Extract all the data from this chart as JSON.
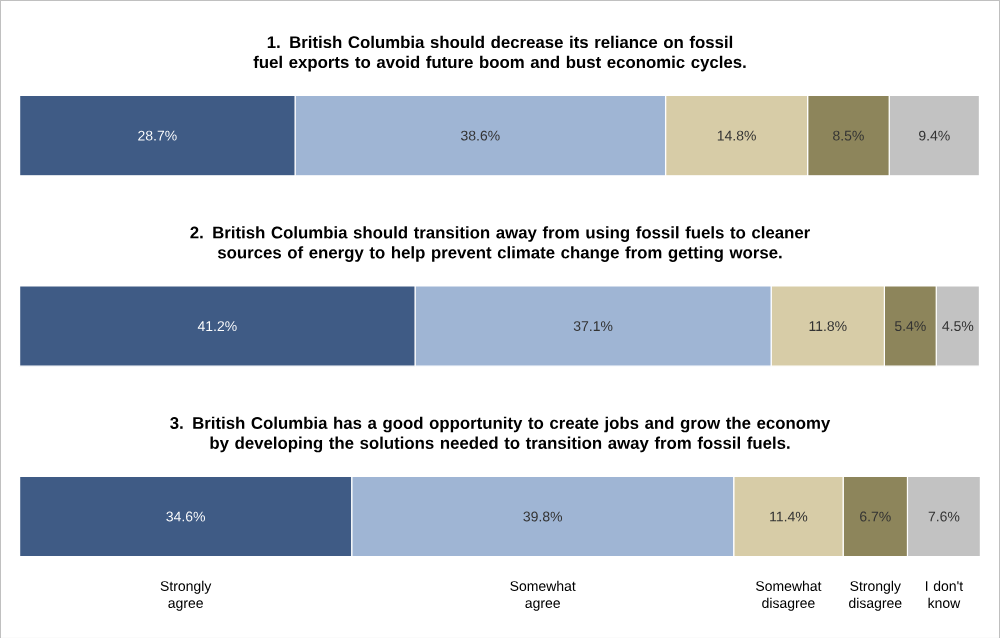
{
  "chart_data": {
    "type": "bar",
    "orientation": "horizontal",
    "stacked": true,
    "legend": "bottom",
    "categories": [
      "1. British Columbia should decrease its reliance on fossil fuel exports to avoid future boom and bust economic cycles.",
      "2. British Columbia should transition away from using fossil fuels to cleaner sources of energy to help prevent climate change from getting worse.",
      "3. British Columbia has a good opportunity to create jobs and grow the economy by developing the solutions needed to transition away from fossil fuels."
    ],
    "series": [
      {
        "name": "Strongly agree",
        "color": "#3f5b85",
        "values": [
          28.7,
          41.2,
          34.6
        ],
        "value_labels": [
          "28.7%",
          "41.2%",
          "34.6%"
        ]
      },
      {
        "name": "Somewhat agree",
        "color": "#9fb5d4",
        "values": [
          38.6,
          37.1,
          39.8
        ],
        "value_labels": [
          "38.6%",
          "37.1%",
          "39.8%"
        ]
      },
      {
        "name": "Somewhat disagree",
        "color": "#d7cca7",
        "values": [
          14.8,
          11.8,
          11.4
        ],
        "value_labels": [
          "14.8%",
          "11.8%",
          "11.4%"
        ]
      },
      {
        "name": "Strongly disagree",
        "color": "#8d855b",
        "values": [
          8.5,
          5.4,
          6.7
        ],
        "value_labels": [
          "8.5%",
          "5.4%",
          "6.7%"
        ]
      },
      {
        "name": "I don't know",
        "color": "#c2c2c2",
        "values": [
          9.4,
          4.5,
          7.6
        ],
        "value_labels": [
          "9.4%",
          "4.5%",
          "7.6%"
        ]
      }
    ]
  }
}
